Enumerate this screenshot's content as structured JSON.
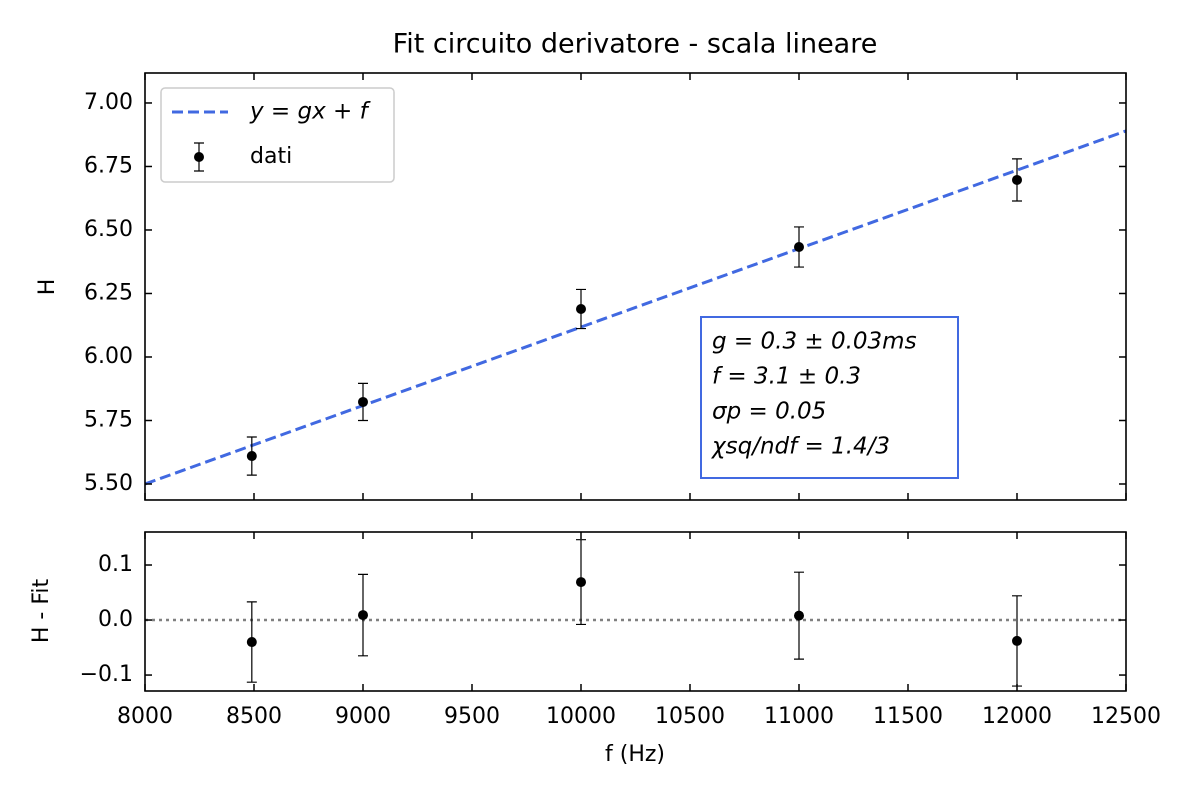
{
  "chart_data": [
    {
      "type": "errorbar",
      "title": "Fit circuito derivatore - scala lineare",
      "ylabel": "H",
      "xlim": [
        8000,
        12500
      ],
      "xticks": [
        8000,
        8500,
        9000,
        9500,
        10000,
        10500,
        11000,
        11500,
        12000,
        12500
      ],
      "xticklabels": false,
      "ylim": [
        5.437,
        7.118
      ],
      "yticks": [
        {
          "value": 5.5,
          "label": "5.50"
        },
        {
          "value": 5.75,
          "label": "5.75"
        },
        {
          "value": 6.0,
          "label": "6.00"
        },
        {
          "value": 6.25,
          "label": "6.25"
        },
        {
          "value": 6.5,
          "label": "6.50"
        },
        {
          "value": 6.75,
          "label": "6.75"
        },
        {
          "value": 7.0,
          "label": "7.00"
        }
      ],
      "legend": "upper left",
      "series": [
        {
          "name": "y = gx + f",
          "kind": "line",
          "style": "dashed",
          "color": "#4169e1",
          "x": [
            8000,
            12500
          ],
          "values": [
            5.5,
            6.89
          ]
        },
        {
          "name": "dati",
          "kind": "errorbar",
          "color": "#000000",
          "x": [
            8490,
            9000,
            10000,
            11000,
            12000
          ],
          "values": [
            5.61,
            5.823,
            6.189,
            6.433,
            6.697
          ],
          "errors": [
            0.075,
            0.073,
            0.077,
            0.079,
            0.083
          ]
        }
      ],
      "annotation": [
        "g = 0.3 ± 0.03ms",
        "f = 3.1 ± 0.3",
        "σp = 0.05",
        "χsq/ndf = 1.4/3"
      ],
      "annotation_color": "#4169e1"
    },
    {
      "type": "errorbar",
      "xlabel": "f (Hz)",
      "ylabel": "H - Fit",
      "xlim": [
        8000,
        12500
      ],
      "xticks": [
        8000,
        8500,
        9000,
        9500,
        10000,
        10500,
        11000,
        11500,
        12000,
        12500
      ],
      "xticklabels": true,
      "ylim": [
        -0.129,
        0.16
      ],
      "yticks": [
        {
          "value": -0.1,
          "label": "−0.1"
        },
        {
          "value": 0.0,
          "label": "0.0"
        },
        0.1
      ],
      "reference_line": 0,
      "series": [
        {
          "name": "dati",
          "kind": "errorbar",
          "color": "#000000",
          "x": [
            8490,
            9000,
            10000,
            11000,
            12000
          ],
          "values": [
            -0.04,
            0.009,
            0.069,
            0.008,
            -0.038
          ],
          "errors": [
            0.073,
            0.074,
            0.077,
            0.079,
            0.082
          ]
        }
      ]
    }
  ]
}
